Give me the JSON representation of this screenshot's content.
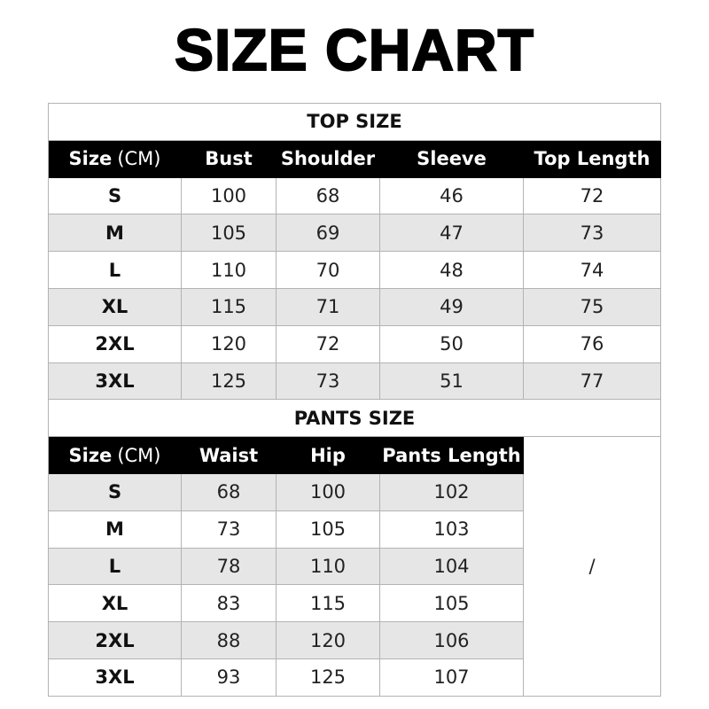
{
  "title": "SIZE CHART",
  "top": {
    "section_label": "TOP SIZE",
    "headers": [
      "Size",
      "Bust",
      "Shoulder",
      "Sleeve",
      "Top Length"
    ],
    "unit": "(CM)",
    "rows": [
      [
        "S",
        "100",
        "68",
        "46",
        "72"
      ],
      [
        "M",
        "105",
        "69",
        "47",
        "73"
      ],
      [
        "L",
        "110",
        "70",
        "48",
        "74"
      ],
      [
        "XL",
        "115",
        "71",
        "49",
        "75"
      ],
      [
        "2XL",
        "120",
        "72",
        "50",
        "76"
      ],
      [
        "3XL",
        "125",
        "73",
        "51",
        "77"
      ]
    ]
  },
  "pants": {
    "section_label": "PANTS SIZE",
    "headers": [
      "Size",
      "Waist",
      "Hip",
      "Pants Length"
    ],
    "unit": "(CM)",
    "rows": [
      [
        "S",
        "68",
        "100",
        "102"
      ],
      [
        "M",
        "73",
        "105",
        "103"
      ],
      [
        "L",
        "78",
        "110",
        "104"
      ],
      [
        "XL",
        "83",
        "115",
        "105"
      ],
      [
        "2XL",
        "88",
        "120",
        "106"
      ],
      [
        "3XL",
        "93",
        "125",
        "107"
      ]
    ],
    "empty_cell": "/"
  },
  "colors": {
    "header_bg": "#000000",
    "stripe": "#e6e6e6",
    "border": "#b3b3b3"
  }
}
